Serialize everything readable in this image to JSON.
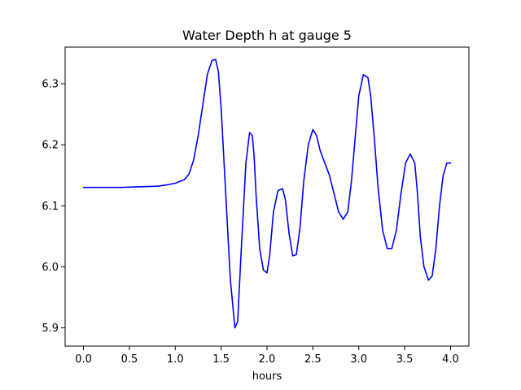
{
  "chart_data": {
    "type": "line",
    "title": "Water Depth h at gauge 5",
    "xlabel": "hours",
    "ylabel": "",
    "xlim": [
      -0.2,
      4.2
    ],
    "ylim": [
      5.87,
      6.36
    ],
    "xticks": [
      0.0,
      0.5,
      1.0,
      1.5,
      2.0,
      2.5,
      3.0,
      3.5,
      4.0
    ],
    "xtick_labels": [
      "0.0",
      "0.5",
      "1.0",
      "1.5",
      "2.0",
      "2.5",
      "3.0",
      "3.5",
      "4.0"
    ],
    "yticks": [
      5.9,
      6.0,
      6.1,
      6.2,
      6.3
    ],
    "ytick_labels": [
      "5.9",
      "6.0",
      "6.1",
      "6.2",
      "6.3"
    ],
    "grid": false,
    "series": [
      {
        "color": "#0000ff",
        "x": [
          0.0,
          0.2,
          0.4,
          0.6,
          0.8,
          0.9,
          1.0,
          1.1,
          1.15,
          1.2,
          1.25,
          1.3,
          1.35,
          1.4,
          1.44,
          1.47,
          1.5,
          1.55,
          1.6,
          1.65,
          1.68,
          1.72,
          1.77,
          1.81,
          1.84,
          1.86,
          1.88,
          1.92,
          1.96,
          2.0,
          2.03,
          2.07,
          2.12,
          2.17,
          2.2,
          2.24,
          2.28,
          2.32,
          2.36,
          2.4,
          2.45,
          2.5,
          2.54,
          2.58,
          2.63,
          2.68,
          2.73,
          2.78,
          2.83,
          2.88,
          2.92,
          2.96,
          3.0,
          3.05,
          3.1,
          3.13,
          3.17,
          3.21,
          3.26,
          3.31,
          3.36,
          3.41,
          3.46,
          3.51,
          3.56,
          3.61,
          3.64,
          3.67,
          3.71,
          3.76,
          3.8,
          3.84,
          3.88,
          3.92,
          3.96,
          4.0
        ],
        "values": [
          6.13,
          6.13,
          6.13,
          6.131,
          6.132,
          6.134,
          6.137,
          6.143,
          6.152,
          6.175,
          6.215,
          6.265,
          6.315,
          6.338,
          6.34,
          6.32,
          6.26,
          6.12,
          5.98,
          5.9,
          5.91,
          6.03,
          6.17,
          6.22,
          6.215,
          6.18,
          6.12,
          6.03,
          5.995,
          5.99,
          6.02,
          6.09,
          6.125,
          6.128,
          6.11,
          6.055,
          6.018,
          6.02,
          6.065,
          6.14,
          6.2,
          6.225,
          6.215,
          6.19,
          6.17,
          6.15,
          6.12,
          6.09,
          6.078,
          6.09,
          6.14,
          6.21,
          6.28,
          6.315,
          6.31,
          6.28,
          6.21,
          6.13,
          6.06,
          6.03,
          6.03,
          6.06,
          6.12,
          6.17,
          6.185,
          6.17,
          6.12,
          6.05,
          6.0,
          5.978,
          5.985,
          6.03,
          6.1,
          6.15,
          6.17,
          6.17
        ]
      }
    ]
  }
}
